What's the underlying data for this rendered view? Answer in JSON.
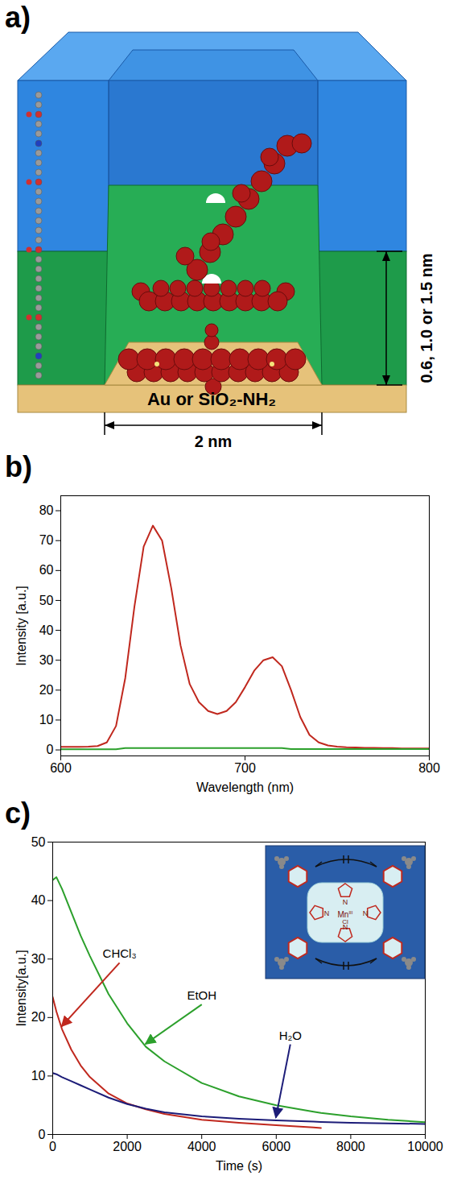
{
  "panel_a": {
    "panel": "a)",
    "substrate": "Au or SiO₂-NH₂",
    "width": "2 nm",
    "depth": "0.6, 1.0 or 1.5 nm"
  },
  "chart_data": [
    {
      "panel": "b)",
      "type": "line",
      "x_label": "Wavelength (nm)",
      "y_label": "Intensity [a.u.]",
      "xlim": [
        600,
        800
      ],
      "xticks": [
        600,
        700,
        800
      ],
      "ylim": [
        -2,
        85
      ],
      "yticks": [
        0,
        10,
        20,
        30,
        40,
        50,
        60,
        70,
        80
      ],
      "x": [
        600,
        605,
        610,
        615,
        620,
        625,
        630,
        635,
        640,
        645,
        650,
        655,
        660,
        665,
        670,
        675,
        680,
        685,
        690,
        695,
        700,
        705,
        710,
        715,
        720,
        725,
        730,
        735,
        740,
        745,
        750,
        755,
        760,
        765,
        770,
        775,
        780,
        785,
        790,
        795,
        800
      ],
      "series": [
        {
          "color": "#c0281e",
          "values": [
            1.0,
            1.0,
            1.0,
            1.1,
            1.3,
            2.5,
            8,
            24,
            48,
            68,
            75,
            70,
            54,
            35,
            22,
            16,
            13,
            12,
            13,
            16,
            21,
            26.5,
            30,
            31,
            28,
            20,
            11,
            5,
            2.5,
            1.5,
            1.1,
            0.9,
            0.8,
            0.7,
            0.7,
            0.6,
            0.6,
            0.5,
            0.5,
            0.5,
            0.5
          ]
        },
        {
          "color": "#2ca02c",
          "values": [
            0.2,
            0.2,
            0.2,
            0.2,
            0.2,
            0.2,
            0.2,
            0.6,
            0.6,
            0.6,
            0.6,
            0.6,
            0.6,
            0.6,
            0.6,
            0.6,
            0.6,
            0.6,
            0.6,
            0.6,
            0.6,
            0.6,
            0.6,
            0.6,
            0.6,
            0.3,
            0.3,
            0.3,
            0.3,
            0.3,
            0.3,
            0.3,
            0.3,
            0.3,
            0.3,
            0.3,
            0.3,
            0.3,
            0.3,
            0.3,
            0.3
          ]
        }
      ]
    },
    {
      "panel": "c)",
      "type": "line",
      "x_label": "Time (s)",
      "y_label": "Intensity[a.u.]",
      "xlim": [
        0,
        10000
      ],
      "xticks": [
        0,
        2000,
        4000,
        6000,
        8000,
        10000
      ],
      "ylim": [
        0,
        50
      ],
      "yticks": [
        0,
        10,
        20,
        30,
        40,
        50
      ],
      "x": [
        0,
        100,
        250,
        500,
        750,
        1000,
        1500,
        2000,
        2500,
        3000,
        4000,
        5000,
        6000,
        7000,
        7200,
        8000,
        9000,
        10000
      ],
      "series": [
        {
          "name": "CHCl₃",
          "color": "#c0281e",
          "values": [
            23.5,
            21,
            18,
            14.5,
            11.8,
            9.8,
            7,
            5.3,
            4.3,
            3.5,
            2.5,
            2,
            1.6,
            1.2,
            1.1,
            null,
            null,
            null
          ]
        },
        {
          "name": "EtOH",
          "color": "#2ca02c",
          "values": [
            43.5,
            44,
            42,
            38,
            34,
            30.5,
            24,
            19,
            15,
            12.5,
            8.8,
            6.5,
            5,
            3.9,
            3.7,
            3.1,
            2.5,
            2.1
          ]
        },
        {
          "name": "H₂O",
          "color": "#1c1c78",
          "values": [
            10.5,
            10.3,
            9.8,
            9.1,
            8.4,
            7.7,
            6.3,
            5.2,
            4.4,
            3.8,
            3.1,
            2.7,
            2.4,
            2.2,
            2.15,
            2,
            1.9,
            1.8
          ]
        }
      ],
      "inset": {
        "metal": "Mn",
        "oxidation_state": "III",
        "axial_ligand": "Cl",
        "atoms": [
          "N",
          "N",
          "N",
          "N"
        ]
      }
    }
  ]
}
